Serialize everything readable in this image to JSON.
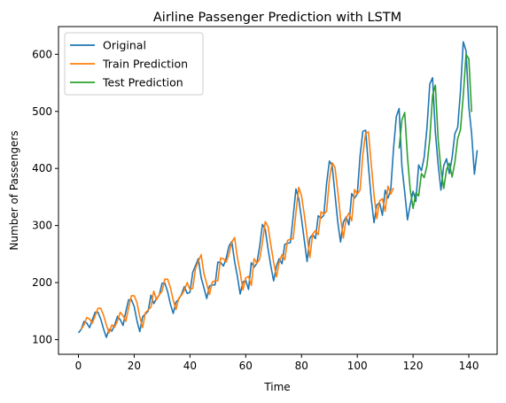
{
  "chart_data": {
    "type": "line",
    "title": "Airline Passenger Prediction with LSTM",
    "xlabel": "Time",
    "ylabel": "Number of Passengers",
    "xlim": [
      -7.15,
      150.15
    ],
    "ylim": [
      74.4,
      648.6
    ],
    "xticks": [
      0,
      20,
      40,
      60,
      80,
      100,
      120,
      140
    ],
    "yticks": [
      100,
      200,
      300,
      400,
      500,
      600
    ],
    "grid": false,
    "legend_position": "top-left",
    "series": [
      {
        "name": "Original",
        "color": "#1f77b4",
        "x_start": 0,
        "values": [
          112,
          118,
          132,
          129,
          121,
          135,
          148,
          148,
          136,
          119,
          104,
          118,
          115,
          126,
          141,
          135,
          125,
          149,
          170,
          170,
          158,
          133,
          114,
          140,
          145,
          150,
          178,
          163,
          172,
          178,
          199,
          199,
          184,
          162,
          146,
          166,
          171,
          180,
          193,
          181,
          183,
          218,
          230,
          242,
          209,
          191,
          172,
          194,
          196,
          196,
          236,
          235,
          229,
          243,
          264,
          272,
          237,
          211,
          180,
          201,
          204,
          188,
          235,
          227,
          234,
          264,
          302,
          293,
          259,
          229,
          203,
          229,
          242,
          233,
          267,
          269,
          270,
          315,
          364,
          347,
          312,
          274,
          237,
          278,
          284,
          277,
          317,
          313,
          318,
          374,
          413,
          405,
          355,
          306,
          271,
          306,
          315,
          301,
          356,
          348,
          355,
          422,
          465,
          467,
          404,
          347,
          305,
          336,
          340,
          318,
          362,
          348,
          363,
          435,
          491,
          505,
          404,
          359,
          310,
          337,
          360,
          342,
          406,
          396,
          420,
          472,
          548,
          559,
          463,
          407,
          362,
          405,
          417,
          391,
          419,
          461,
          472,
          535,
          622,
          606,
          508,
          461,
          390,
          432
        ]
      },
      {
        "name": "Train Prediction",
        "color": "#ff7f0e",
        "x_start": 1,
        "values": [
          118,
          126,
          139,
          136,
          129,
          142,
          155,
          155,
          143,
          126,
          112,
          126,
          122,
          133,
          148,
          142,
          132,
          156,
          177,
          177,
          165,
          140,
          121,
          147,
          152,
          157,
          185,
          170,
          179,
          185,
          206,
          206,
          191,
          169,
          153,
          173,
          178,
          187,
          200,
          188,
          190,
          225,
          237,
          249,
          216,
          198,
          179,
          201,
          203,
          203,
          243,
          242,
          236,
          250,
          271,
          279,
          244,
          218,
          187,
          208,
          211,
          195,
          242,
          234,
          241,
          271,
          307,
          298,
          266,
          236,
          210,
          236,
          249,
          240,
          274,
          276,
          277,
          322,
          367,
          352,
          319,
          281,
          244,
          285,
          291,
          284,
          324,
          320,
          325,
          381,
          410,
          402,
          360,
          313,
          278,
          313,
          322,
          308,
          363,
          355,
          362,
          424,
          462,
          464,
          408,
          354,
          312,
          343,
          347,
          325,
          369,
          355,
          366
        ]
      },
      {
        "name": "Test Prediction",
        "color": "#2ca02c",
        "x_start": 115,
        "values": [
          435,
          485,
          498,
          420,
          362,
          330,
          357,
          352,
          391,
          384,
          405,
          452,
          528,
          546,
          451,
          398,
          365,
          398,
          409,
          385,
          411,
          452,
          468,
          527,
          600,
          592,
          499
        ]
      }
    ]
  }
}
